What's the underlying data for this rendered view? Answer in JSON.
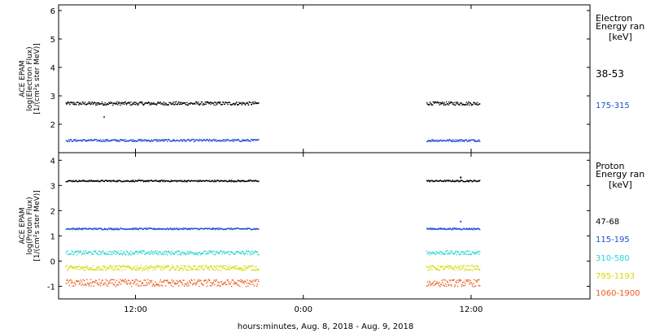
{
  "chart_data": [
    {
      "type": "scatter",
      "title": "",
      "ylabel_lines": [
        "ACE EPAM",
        "log(Electron Flux)",
        "[1/(cm²s ster MeV)]"
      ],
      "ylim": [
        1,
        6.2
      ],
      "yticks": [
        2,
        3,
        4,
        5,
        6
      ],
      "x_range_hours": [
        6.5,
        44.5
      ],
      "side_title_lines": [
        "Electron",
        "Energy ran"
      ],
      "side_unit": "[keV]",
      "series": [
        {
          "name": "38-53",
          "color": "#000000",
          "level": 2.75,
          "noise": 0.06,
          "segments": [
            [
              7.0,
              20.8
            ],
            [
              32.8,
              36.6
            ]
          ]
        },
        {
          "name": "175-315",
          "color": "#1f4fd0",
          "level": 1.45,
          "noise": 0.04,
          "segments": [
            [
              7.0,
              20.8
            ],
            [
              32.8,
              36.6
            ]
          ]
        }
      ],
      "outliers": [
        {
          "x": 9.7,
          "y": 2.28,
          "series": "175-315"
        }
      ]
    },
    {
      "type": "scatter",
      "title": "",
      "ylabel_lines": [
        "ACE EPAM",
        "log(Proton Flux)",
        "[1/(cm²s ster MeV)]"
      ],
      "ylim": [
        -1.5,
        4.3
      ],
      "yticks": [
        -1,
        0,
        1,
        2,
        3,
        4
      ],
      "x_range_hours": [
        6.5,
        44.5
      ],
      "side_title_lines": [
        "Proton",
        "Energy ran"
      ],
      "side_unit": "[keV]",
      "series": [
        {
          "name": "47-68",
          "color": "#000000",
          "level": 3.2,
          "noise": 0.03,
          "segments": [
            [
              7.0,
              20.8
            ],
            [
              32.8,
              36.6
            ]
          ]
        },
        {
          "name": "115-195",
          "color": "#1f4fd0",
          "level": 1.3,
          "noise": 0.03,
          "segments": [
            [
              7.0,
              20.8
            ],
            [
              32.8,
              36.6
            ]
          ]
        },
        {
          "name": "310-580",
          "color": "#2ad4d4",
          "level": 0.35,
          "noise": 0.08,
          "segments": [
            [
              7.0,
              20.8
            ],
            [
              32.8,
              36.6
            ]
          ]
        },
        {
          "name": "795-1193",
          "color": "#d8d800",
          "level": -0.25,
          "noise": 0.1,
          "segments": [
            [
              7.0,
              20.8
            ],
            [
              32.8,
              36.6
            ]
          ]
        },
        {
          "name": "1060-1900",
          "color": "#f05a1a",
          "level": -0.85,
          "noise": 0.14,
          "segments": [
            [
              7.0,
              20.8
            ],
            [
              32.8,
              36.6
            ]
          ]
        }
      ],
      "outliers": [
        {
          "x": 35.2,
          "y": 1.6,
          "series": "115-195"
        },
        {
          "x": 35.2,
          "y": 3.35,
          "series": "47-68"
        }
      ]
    }
  ],
  "x_axis": {
    "ticks": [
      {
        "hour": 12,
        "label": "12:00"
      },
      {
        "hour": 24,
        "label": "0:00"
      },
      {
        "hour": 36,
        "label": "12:00"
      }
    ],
    "xlabel": "hours:minutes, Aug.  8, 2018 - Aug.  9, 2018"
  }
}
